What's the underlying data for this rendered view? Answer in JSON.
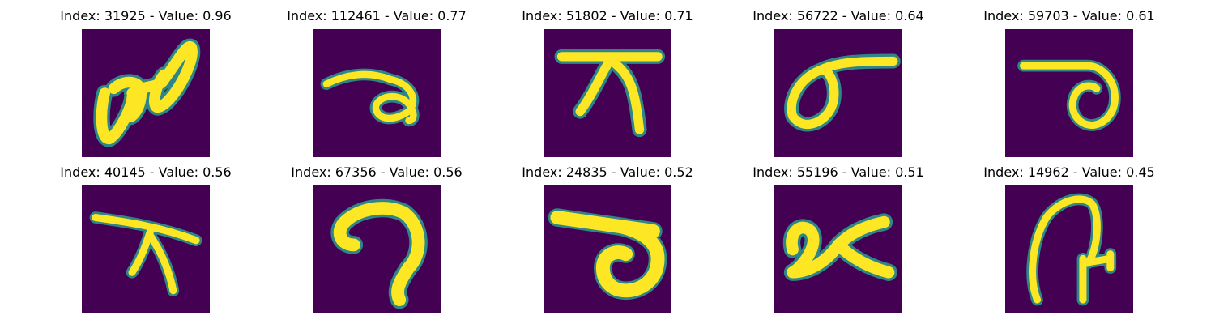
{
  "grid": {
    "panels": [
      {
        "title": "Index: 31925 - Value: 0.96"
      },
      {
        "title": "Index: 112461 - Value: 0.77"
      },
      {
        "title": "Index: 51802 - Value: 0.71"
      },
      {
        "title": "Index: 56722 - Value: 0.64"
      },
      {
        "title": "Index: 59703 - Value: 0.61"
      },
      {
        "title": "Index: 40145 - Value: 0.56"
      },
      {
        "title": "Index: 67356 - Value: 0.56"
      },
      {
        "title": "Index: 24835 - Value: 0.52"
      },
      {
        "title": "Index: 55196 - Value: 0.51"
      },
      {
        "title": "Index: 14962 - Value: 0.45"
      }
    ]
  },
  "colors": {
    "background_pixel": "#440154",
    "stroke_pixel": "#fde725",
    "edge_pixel": "#2a9d8f"
  }
}
